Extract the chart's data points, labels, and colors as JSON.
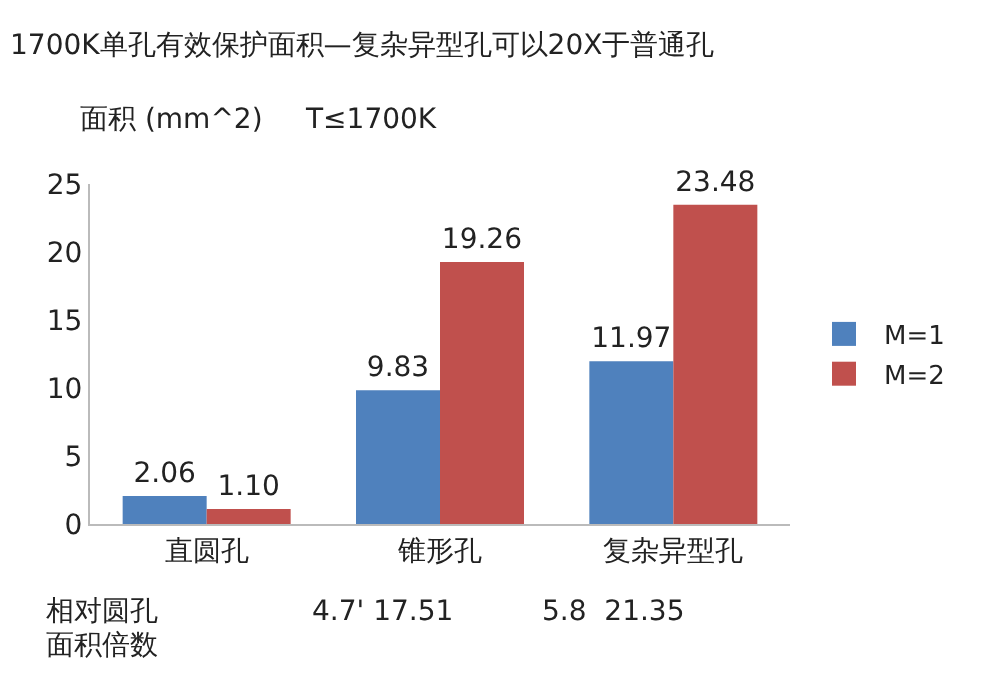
{
  "chart_data": {
    "type": "bar",
    "title": "1700K单孔有效保护面积—复杂异型孔可以20X于普通孔",
    "ylabel": "面积 (mm^2)",
    "categories": [
      "直圆孔",
      "锥形孔",
      "复杂异型孔"
    ],
    "series": [
      {
        "name": "M=1",
        "color": "#4f81bd",
        "values": [
          2.06,
          9.83,
          11.97
        ],
        "value_labels": [
          "2.06",
          "9.83",
          "11.97"
        ]
      },
      {
        "name": "M=2",
        "color": "#c0504d",
        "values": [
          1.1,
          19.26,
          23.48
        ],
        "value_labels": [
          "1.10",
          "19.26",
          "23.48"
        ]
      }
    ],
    "ylim": [
      0,
      25
    ],
    "yticks": [
      0,
      5,
      10,
      15,
      20,
      25
    ],
    "legend": "right",
    "annotations": [
      "T≤1700K",
      "相对圆孔",
      "面积倍数",
      "4.7' 17.51",
      "5.8  21.35"
    ]
  }
}
